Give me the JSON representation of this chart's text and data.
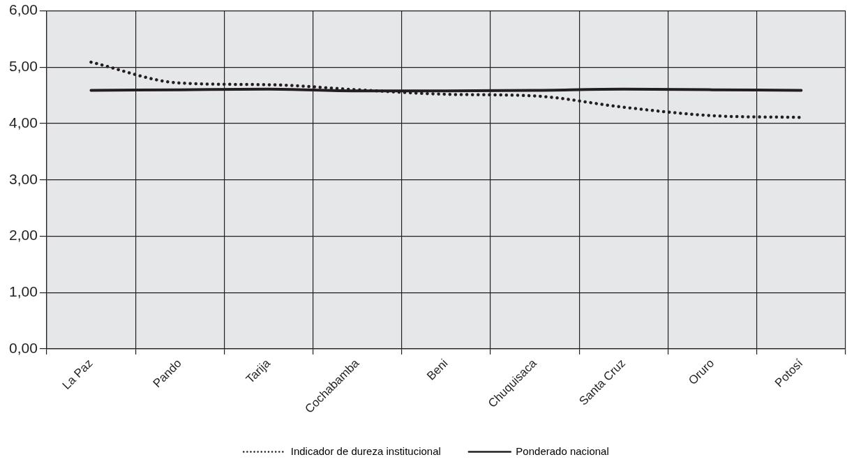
{
  "chart_data": {
    "type": "line",
    "categories": [
      "La Paz",
      "Pando",
      "Tarija",
      "Cochabamba",
      "Beni",
      "Chuquisaca",
      "Santa Cruz",
      "Oruro",
      "Potosí"
    ],
    "series": [
      {
        "name": "Indicador de dureza institucional",
        "color": "#231f20",
        "line_style": "dotted",
        "values": [
          5.09,
          4.72,
          4.69,
          4.6,
          4.52,
          4.49,
          4.29,
          4.14,
          4.11
        ]
      },
      {
        "name": "Ponderado nacional",
        "color": "#231f20",
        "line_style": "solid",
        "values": [
          4.59,
          4.6,
          4.61,
          4.58,
          4.58,
          4.59,
          4.61,
          4.6,
          4.59
        ]
      }
    ],
    "ylim": [
      0,
      6
    ],
    "yticks": [
      {
        "value": 0,
        "label": "0,00"
      },
      {
        "value": 1,
        "label": "1,00"
      },
      {
        "value": 2,
        "label": "2,00"
      },
      {
        "value": 3,
        "label": "3,00"
      },
      {
        "value": 4,
        "label": "4,00"
      },
      {
        "value": 5,
        "label": "5,00"
      },
      {
        "value": 6,
        "label": "6,00"
      }
    ],
    "grid": true,
    "legend": "bottom",
    "marker": "none"
  }
}
